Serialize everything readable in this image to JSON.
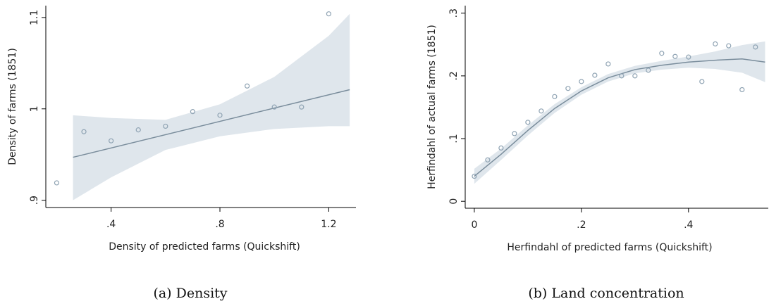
{
  "chart_data": [
    {
      "type": "scatter",
      "x_label": "Density of predicted farms (Quickshift)",
      "y_label": "Density of farms (1851)",
      "caption": "(a) Density",
      "xlim": [
        0.16,
        1.3
      ],
      "ylim": [
        0.892,
        1.113
      ],
      "xticks": [
        {
          "value": 0.4,
          "label": ".4"
        },
        {
          "value": 0.8,
          "label": ".8"
        },
        1.2
      ],
      "yticks": [
        {
          "value": 0.9,
          "label": ".9"
        },
        1,
        1.1
      ],
      "points": {
        "color": "#8fa3b3",
        "x": [
          0.2,
          0.3,
          0.4,
          0.5,
          0.6,
          0.7,
          0.8,
          0.9,
          1.0,
          1.1,
          1.2
        ],
        "y": [
          0.919,
          0.975,
          0.965,
          0.977,
          0.981,
          0.997,
          0.993,
          1.025,
          1.002,
          1.002,
          1.104
        ]
      },
      "fit": {
        "color": "#7a8d9c",
        "x": [
          0.26,
          1.277
        ],
        "y": [
          0.947,
          1.021
        ]
      },
      "band": {
        "color": "#dfe6ec",
        "x": [
          0.26,
          0.4,
          0.6,
          0.8,
          1.0,
          1.2,
          1.277
        ],
        "lower": [
          0.9,
          0.925,
          0.955,
          0.97,
          0.978,
          0.981,
          0.981
        ],
        "upper": [
          0.993,
          0.99,
          0.988,
          1.005,
          1.035,
          1.08,
          1.104
        ]
      }
    },
    {
      "type": "scatter",
      "x_label": "Herfindahl of predicted farms (Quickshift)",
      "y_label": "Herfindahl of actual farms (1851)",
      "caption": "(b) Land concentration",
      "xlim": [
        -0.017,
        0.549
      ],
      "ylim": [
        -0.011,
        0.312
      ],
      "xticks": [
        0,
        {
          "value": 0.2,
          "label": ".2"
        },
        {
          "value": 0.4,
          "label": ".4"
        }
      ],
      "yticks": [
        0,
        {
          "value": 0.1,
          "label": ".1"
        },
        {
          "value": 0.2,
          "label": ".2"
        },
        {
          "value": 0.3,
          "label": ".3"
        }
      ],
      "points": {
        "color": "#8fa3b3",
        "x": [
          0,
          0.025,
          0.05,
          0.075,
          0.1,
          0.125,
          0.15,
          0.175,
          0.2,
          0.225,
          0.25,
          0.275,
          0.3,
          0.325,
          0.35,
          0.375,
          0.4,
          0.425,
          0.45,
          0.475,
          0.5,
          0.525
        ],
        "y": [
          0.04,
          0.066,
          0.085,
          0.108,
          0.126,
          0.144,
          0.167,
          0.18,
          0.191,
          0.201,
          0.219,
          0.2,
          0.2,
          0.209,
          0.236,
          0.231,
          0.23,
          0.191,
          0.251,
          0.248,
          0.178,
          0.246
        ]
      },
      "fit": {
        "color": "#7a8d9c",
        "x": [
          0,
          0.05,
          0.1,
          0.15,
          0.2,
          0.25,
          0.3,
          0.35,
          0.4,
          0.45,
          0.5,
          0.543
        ],
        "y": [
          0.04,
          0.075,
          0.113,
          0.148,
          0.176,
          0.197,
          0.21,
          0.217,
          0.222,
          0.225,
          0.227,
          0.222
        ]
      },
      "band": {
        "color": "#dfe6ec",
        "x": [
          0,
          0.05,
          0.1,
          0.15,
          0.2,
          0.25,
          0.3,
          0.35,
          0.4,
          0.45,
          0.5,
          0.543
        ],
        "lower": [
          0.028,
          0.066,
          0.105,
          0.141,
          0.17,
          0.191,
          0.204,
          0.21,
          0.213,
          0.211,
          0.205,
          0.19
        ],
        "upper": [
          0.052,
          0.084,
          0.121,
          0.155,
          0.182,
          0.203,
          0.216,
          0.224,
          0.231,
          0.239,
          0.249,
          0.255
        ]
      }
    }
  ]
}
